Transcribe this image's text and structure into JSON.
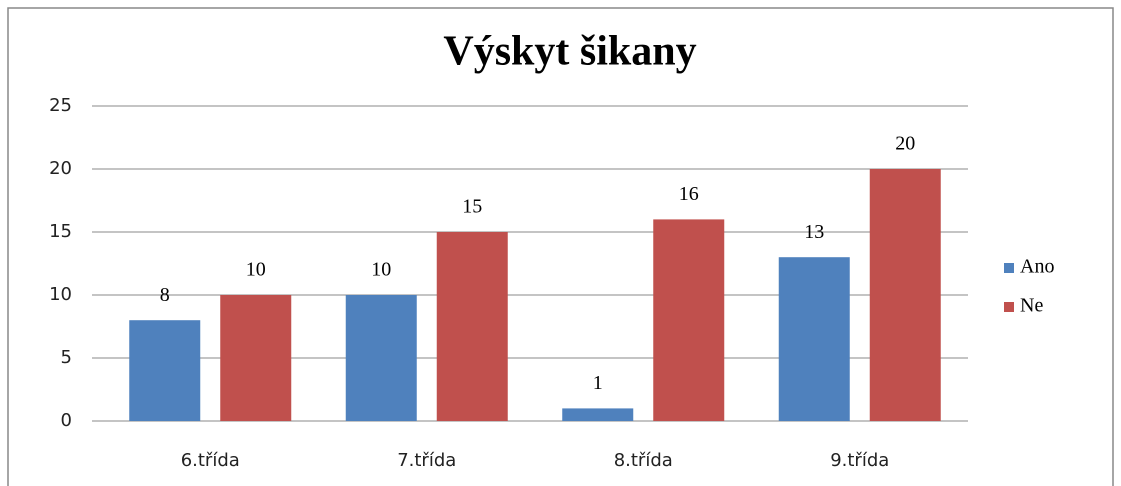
{
  "chart_data": {
    "type": "bar",
    "title": "Výskyt šikany",
    "categories": [
      "6.třída",
      "7.třída",
      "8.třída",
      "9.třída"
    ],
    "series": [
      {
        "name": "Ano",
        "color": "#4f81bd",
        "values": [
          8,
          10,
          1,
          13
        ]
      },
      {
        "name": "Ne",
        "color": "#c0504d",
        "values": [
          10,
          15,
          16,
          20
        ]
      }
    ],
    "ylim": [
      0,
      25
    ],
    "yticks": [
      0,
      5,
      10,
      15,
      20,
      25
    ],
    "grid": true,
    "legend": "right"
  }
}
